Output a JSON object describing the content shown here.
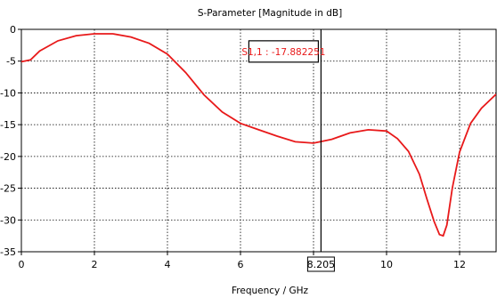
{
  "chart_data": {
    "type": "line",
    "title": "S-Parameter [Magnitude in dB]",
    "xlabel": "Frequency / GHz",
    "ylabel": "",
    "xlim": [
      0,
      13.0
    ],
    "ylim": [
      -35,
      0
    ],
    "xticks": [
      0,
      2,
      4,
      6,
      8,
      10,
      12
    ],
    "yticks": [
      0,
      -5,
      -10,
      -15,
      -20,
      -25,
      -30,
      -35
    ],
    "grid": true,
    "series": [
      {
        "color": "#e8191a",
        "x": [
          0,
          0.25,
          0.5,
          1.0,
          1.5,
          2.0,
          2.5,
          3.0,
          3.5,
          4.0,
          4.5,
          5.0,
          5.5,
          6.0,
          6.5,
          7.0,
          7.5,
          8.0,
          8.5,
          9.0,
          9.5,
          10.0,
          10.3,
          10.6,
          10.9,
          11.1,
          11.3,
          11.45,
          11.55,
          11.65,
          11.8,
          12.0,
          12.3,
          12.6,
          13.0
        ],
        "y": [
          -5.1,
          -4.8,
          -3.4,
          -1.8,
          -1.0,
          -0.7,
          -0.7,
          -1.2,
          -2.2,
          -3.9,
          -6.8,
          -10.3,
          -13.0,
          -14.8,
          -15.8,
          -16.8,
          -17.7,
          -17.9,
          -17.3,
          -16.3,
          -15.8,
          -16.0,
          -17.2,
          -19.2,
          -22.8,
          -26.6,
          -30.2,
          -32.3,
          -32.5,
          -30.8,
          -25.0,
          -19.3,
          -14.8,
          -12.4,
          -10.2
        ]
      }
    ],
    "marker": {
      "label": "S1,1 : -17.882251",
      "x": 8.205,
      "y": -17.882251,
      "x_readout": "8.205",
      "color": "#e8191a"
    }
  }
}
